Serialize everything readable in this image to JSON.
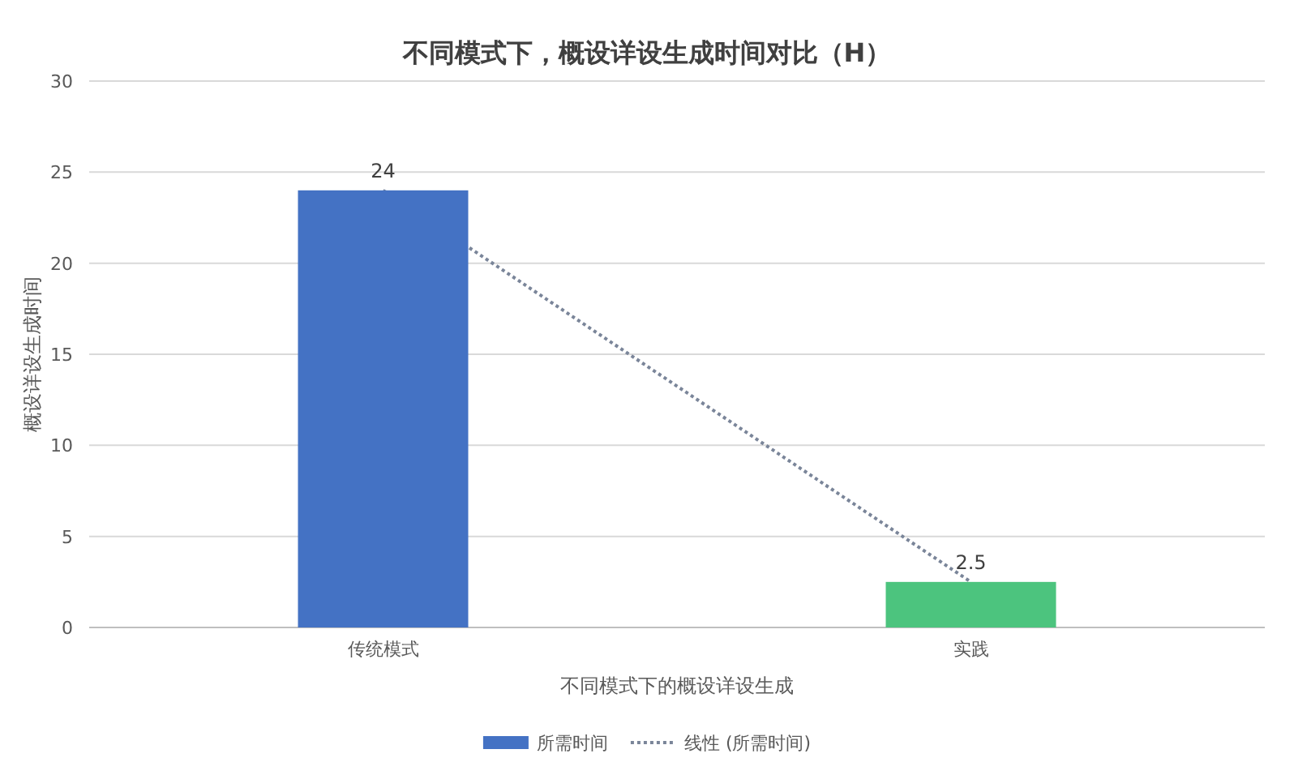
{
  "chart_data": {
    "type": "bar",
    "title": "不同模式下，概设详设生成时间对比（H）",
    "xlabel": "不同模式下的概设详设生成",
    "ylabel": "概设详设生成时间",
    "categories": [
      "传统模式",
      "实践"
    ],
    "series": [
      {
        "name": "所需时间",
        "color": "#4472c4",
        "colors": [
          "#4472c4",
          "#4cc47e"
        ],
        "values": [
          24,
          2.5
        ],
        "value_labels": [
          "24",
          "2.5"
        ]
      },
      {
        "name": "线性 (所需时间)",
        "type": "line",
        "color": "#7a8599",
        "line_style": "dotted",
        "values": [
          24,
          2.5
        ]
      }
    ],
    "ylim": [
      0,
      30
    ],
    "yticks": [
      0,
      5,
      10,
      15,
      20,
      25,
      30
    ],
    "grid": "y",
    "legend": "bottom"
  }
}
